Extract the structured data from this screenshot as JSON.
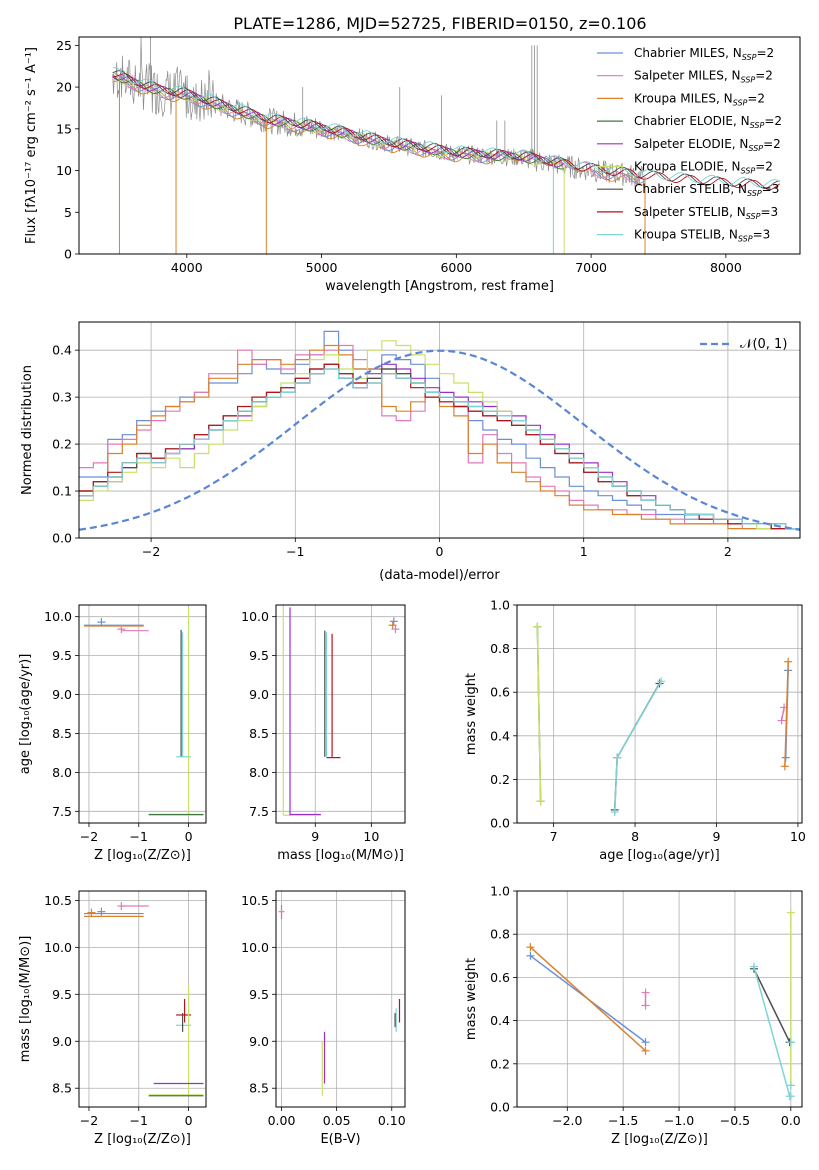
{
  "title": "PLATE=1286, MJD=52725, FIBERID=0150, z=0.106",
  "colors": {
    "chabrier_miles": "#6a8fd6",
    "salpeter_miles": "#e07ab9",
    "kroupa_miles": "#d9822b",
    "chabrier_elodie": "#3f7a3f",
    "salpeter_elodie": "#9b30c9",
    "kroupa_elodie": "#c8e06a",
    "chabrier_stelib": "#4d4d4d",
    "salpeter_stelib": "#b3131b",
    "kroupa_stelib": "#7fd3d6",
    "data_gray": "#8c8c8c",
    "gaussian": "#5b86d6"
  },
  "legend_models": [
    {
      "id": "chabrier_miles",
      "label": "Chabrier MILES, N",
      "sub": "SSP",
      "suffix": "=2"
    },
    {
      "id": "salpeter_miles",
      "label": "Salpeter MILES, N",
      "sub": "SSP",
      "suffix": "=2"
    },
    {
      "id": "kroupa_miles",
      "label": "Kroupa MILES, N",
      "sub": "SSP",
      "suffix": "=2"
    },
    {
      "id": "chabrier_elodie",
      "label": "Chabrier ELODIE, N",
      "sub": "SSP",
      "suffix": "=2"
    },
    {
      "id": "salpeter_elodie",
      "label": "Salpeter ELODIE, N",
      "sub": "SSP",
      "suffix": "=2"
    },
    {
      "id": "kroupa_elodie",
      "label": "Kroupa ELODIE, N",
      "sub": "SSP",
      "suffix": "=2"
    },
    {
      "id": "chabrier_stelib",
      "label": "Chabrier STELIB, N",
      "sub": "SSP",
      "suffix": "=3"
    },
    {
      "id": "salpeter_stelib",
      "label": "Salpeter STELIB, N",
      "sub": "SSP",
      "suffix": "=3"
    },
    {
      "id": "kroupa_stelib",
      "label": "Kroupa STELIB, N",
      "sub": "SSP",
      "suffix": "=3"
    }
  ],
  "chart_data": [
    {
      "id": "spectrum",
      "type": "line",
      "xlabel": "wavelength [Angstrom, rest frame]",
      "ylabel": "Flux [fλ10⁻¹⁷ erg cm⁻² s⁻¹ A⁻¹]",
      "xlim": [
        3200,
        8550
      ],
      "ylim": [
        0,
        26
      ],
      "xticks": [
        4000,
        5000,
        6000,
        7000,
        8000
      ],
      "yticks": [
        0,
        5,
        10,
        15,
        20,
        25
      ],
      "grid": false,
      "legend": "top-right",
      "model_continuum": [
        [
          3450,
          21.5
        ],
        [
          3600,
          20.5
        ],
        [
          3800,
          19.5
        ],
        [
          4000,
          19.0
        ],
        [
          4300,
          17.5
        ],
        [
          4600,
          16.0
        ],
        [
          5000,
          15.0
        ],
        [
          5500,
          13.2
        ],
        [
          6000,
          12.0
        ],
        [
          6500,
          11.5
        ],
        [
          7000,
          10.0
        ],
        [
          7500,
          9.0
        ],
        [
          8000,
          8.3
        ],
        [
          8500,
          7.8
        ]
      ]
    },
    {
      "id": "residuals",
      "type": "line",
      "xlabel": "(data-model)/error",
      "ylabel": "Normed distribution",
      "xlim": [
        -2.5,
        2.5
      ],
      "ylim": [
        0,
        0.46
      ],
      "xticks": [
        -2,
        -1,
        0,
        1,
        2
      ],
      "yticks": [
        0.0,
        0.1,
        0.2,
        0.3,
        0.4
      ],
      "grid": true,
      "legend": "top-right",
      "gaussian_label": "𝒩(0, 1)",
      "bins": {
        "start": -2.5,
        "width": 0.1,
        "count": 50
      },
      "series": [
        {
          "id": "chabrier_miles",
          "values": [
            0.13,
            0.13,
            0.21,
            0.22,
            0.25,
            0.27,
            0.28,
            0.3,
            0.31,
            0.33,
            0.33,
            0.35,
            0.37,
            0.36,
            0.35,
            0.37,
            0.39,
            0.44,
            0.4,
            0.36,
            0.36,
            0.39,
            0.38,
            0.37,
            0.34,
            0.3,
            0.29,
            0.25,
            0.23,
            0.21,
            0.2,
            0.17,
            0.15,
            0.13,
            0.11,
            0.1,
            0.09,
            0.08,
            0.07,
            0.06,
            0.05,
            0.05,
            0.04,
            0.04,
            0.03,
            0.03,
            0.03,
            0.03,
            0.02,
            0.02
          ]
        },
        {
          "id": "salpeter_miles",
          "values": [
            0.15,
            0.16,
            0.2,
            0.21,
            0.23,
            0.25,
            0.27,
            0.29,
            0.31,
            0.35,
            0.35,
            0.4,
            0.37,
            0.38,
            0.36,
            0.39,
            0.39,
            0.4,
            0.41,
            0.38,
            0.36,
            0.26,
            0.25,
            0.27,
            0.3,
            0.29,
            0.28,
            0.16,
            0.22,
            0.18,
            0.16,
            0.13,
            0.11,
            0.1,
            0.08,
            0.07,
            0.06,
            0.06,
            0.05,
            0.05,
            0.04,
            0.04,
            0.03,
            0.03,
            0.03,
            0.03,
            0.02,
            0.02,
            0.02,
            0.02
          ]
        },
        {
          "id": "kroupa_miles",
          "values": [
            0.1,
            0.12,
            0.18,
            0.2,
            0.24,
            0.26,
            0.28,
            0.29,
            0.3,
            0.34,
            0.34,
            0.37,
            0.38,
            0.38,
            0.37,
            0.38,
            0.4,
            0.41,
            0.39,
            0.36,
            0.36,
            0.28,
            0.27,
            0.29,
            0.31,
            0.28,
            0.26,
            0.18,
            0.2,
            0.16,
            0.14,
            0.12,
            0.1,
            0.09,
            0.07,
            0.06,
            0.06,
            0.05,
            0.05,
            0.04,
            0.04,
            0.03,
            0.03,
            0.03,
            0.03,
            0.02,
            0.02,
            0.02,
            0.02,
            0.02
          ]
        },
        {
          "id": "chabrier_elodie",
          "values": [
            0.09,
            0.11,
            0.13,
            0.16,
            0.17,
            0.16,
            0.18,
            0.19,
            0.21,
            0.23,
            0.25,
            0.27,
            0.29,
            0.3,
            0.31,
            0.33,
            0.35,
            0.36,
            0.34,
            0.32,
            0.34,
            0.36,
            0.35,
            0.33,
            0.31,
            0.3,
            0.29,
            0.28,
            0.27,
            0.26,
            0.25,
            0.23,
            0.21,
            0.19,
            0.17,
            0.15,
            0.13,
            0.11,
            0.1,
            0.08,
            0.07,
            0.06,
            0.05,
            0.05,
            0.04,
            0.04,
            0.03,
            0.03,
            0.03,
            0.02
          ]
        },
        {
          "id": "salpeter_elodie",
          "values": [
            0.09,
            0.11,
            0.12,
            0.15,
            0.17,
            0.16,
            0.18,
            0.19,
            0.21,
            0.23,
            0.25,
            0.26,
            0.28,
            0.3,
            0.31,
            0.33,
            0.35,
            0.37,
            0.34,
            0.32,
            0.35,
            0.37,
            0.36,
            0.34,
            0.32,
            0.31,
            0.3,
            0.29,
            0.28,
            0.27,
            0.26,
            0.24,
            0.22,
            0.2,
            0.18,
            0.16,
            0.14,
            0.12,
            0.1,
            0.09,
            0.07,
            0.06,
            0.05,
            0.05,
            0.04,
            0.04,
            0.03,
            0.03,
            0.03,
            0.02
          ]
        },
        {
          "id": "kroupa_elodie",
          "values": [
            0.08,
            0.1,
            0.12,
            0.14,
            0.16,
            0.15,
            0.17,
            0.15,
            0.18,
            0.2,
            0.23,
            0.25,
            0.28,
            0.31,
            0.33,
            0.35,
            0.38,
            0.39,
            0.36,
            0.34,
            0.4,
            0.42,
            0.41,
            0.39,
            0.37,
            0.35,
            0.33,
            0.31,
            0.29,
            0.27,
            0.25,
            0.23,
            0.21,
            0.19,
            0.17,
            0.15,
            0.13,
            0.11,
            0.09,
            0.08,
            0.07,
            0.06,
            0.05,
            0.04,
            0.04,
            0.03,
            0.03,
            0.02,
            0.02,
            0.02
          ]
        },
        {
          "id": "chabrier_stelib",
          "values": [
            0.1,
            0.12,
            0.13,
            0.15,
            0.18,
            0.17,
            0.19,
            0.2,
            0.22,
            0.24,
            0.26,
            0.27,
            0.29,
            0.31,
            0.32,
            0.34,
            0.36,
            0.37,
            0.35,
            0.33,
            0.34,
            0.36,
            0.35,
            0.33,
            0.31,
            0.3,
            0.28,
            0.27,
            0.26,
            0.25,
            0.24,
            0.22,
            0.2,
            0.18,
            0.16,
            0.14,
            0.12,
            0.11,
            0.09,
            0.08,
            0.07,
            0.06,
            0.05,
            0.04,
            0.04,
            0.03,
            0.03,
            0.03,
            0.02,
            0.02
          ]
        },
        {
          "id": "salpeter_stelib",
          "values": [
            0.1,
            0.12,
            0.14,
            0.16,
            0.18,
            0.17,
            0.19,
            0.2,
            0.22,
            0.24,
            0.26,
            0.28,
            0.3,
            0.31,
            0.32,
            0.34,
            0.36,
            0.37,
            0.35,
            0.33,
            0.33,
            0.35,
            0.34,
            0.32,
            0.3,
            0.29,
            0.28,
            0.27,
            0.26,
            0.25,
            0.24,
            0.22,
            0.2,
            0.18,
            0.16,
            0.14,
            0.12,
            0.11,
            0.09,
            0.08,
            0.07,
            0.06,
            0.05,
            0.04,
            0.04,
            0.03,
            0.03,
            0.03,
            0.02,
            0.02
          ]
        },
        {
          "id": "kroupa_stelib",
          "values": [
            0.09,
            0.11,
            0.13,
            0.16,
            0.17,
            0.16,
            0.18,
            0.2,
            0.21,
            0.23,
            0.25,
            0.27,
            0.29,
            0.3,
            0.31,
            0.33,
            0.35,
            0.36,
            0.34,
            0.32,
            0.33,
            0.35,
            0.34,
            0.33,
            0.31,
            0.3,
            0.29,
            0.28,
            0.27,
            0.26,
            0.25,
            0.23,
            0.21,
            0.19,
            0.17,
            0.15,
            0.13,
            0.11,
            0.1,
            0.08,
            0.07,
            0.06,
            0.05,
            0.05,
            0.04,
            0.04,
            0.03,
            0.03,
            0.03,
            0.02
          ]
        }
      ]
    },
    {
      "id": "age_vs_Z",
      "type": "scatter",
      "xlabel": "Z [log₁₀(Z/Z⊙)]",
      "ylabel": "age  [log₁₀(age/yr)]",
      "xlim": [
        -2.2,
        0.35
      ],
      "ylim": [
        7.35,
        10.15
      ],
      "xticks": [
        -2,
        -1,
        0
      ],
      "yticks": [
        7.5,
        8.0,
        8.5,
        9.0,
        9.5,
        10.0
      ],
      "grid": true
    },
    {
      "id": "age_vs_mass",
      "type": "scatter",
      "xlabel": "mass [log₁₀(M/M⊙)]",
      "ylabel": "",
      "xlim": [
        8.3,
        10.6
      ],
      "ylim": [
        7.35,
        10.15
      ],
      "xticks": [
        9,
        10
      ],
      "yticks": [
        7.5,
        8.0,
        8.5,
        9.0,
        9.5,
        10.0
      ],
      "grid": true
    },
    {
      "id": "weight_vs_age",
      "type": "line",
      "xlabel": "age  [log₁₀(age/yr)]",
      "ylabel": "mass weight",
      "xlim": [
        6.55,
        10.05
      ],
      "ylim": [
        0,
        1.0
      ],
      "xticks": [
        7,
        8,
        9,
        10
      ],
      "yticks": [
        0.0,
        0.2,
        0.4,
        0.6,
        0.8,
        1.0
      ],
      "grid": true,
      "series": [
        {
          "id": "chabrier_miles",
          "points": [
            [
              9.85,
              0.3
            ],
            [
              9.88,
              0.7
            ]
          ]
        },
        {
          "id": "salpeter_miles",
          "points": [
            [
              9.8,
              0.47
            ],
            [
              9.83,
              0.53
            ]
          ]
        },
        {
          "id": "kroupa_miles",
          "points": [
            [
              9.84,
              0.26
            ],
            [
              9.88,
              0.74
            ]
          ]
        },
        {
          "id": "chabrier_elodie",
          "points": [
            [
              6.8,
              0.9
            ],
            [
              6.84,
              0.1
            ]
          ]
        },
        {
          "id": "kroupa_elodie",
          "points": [
            [
              6.8,
              0.9
            ],
            [
              6.84,
              0.1
            ]
          ]
        },
        {
          "id": "chabrier_stelib",
          "points": [
            [
              7.75,
              0.06
            ],
            [
              7.78,
              0.3
            ],
            [
              8.3,
              0.64
            ]
          ]
        },
        {
          "id": "kroupa_stelib",
          "points": [
            [
              7.75,
              0.05
            ],
            [
              7.78,
              0.3
            ],
            [
              8.32,
              0.65
            ]
          ]
        }
      ]
    },
    {
      "id": "mass_vs_Z",
      "type": "scatter",
      "xlabel": "Z [log₁₀(Z/Z⊙)]",
      "ylabel": "mass [log₁₀(M/M⊙)]",
      "xlim": [
        -2.2,
        0.35
      ],
      "ylim": [
        8.3,
        10.6
      ],
      "xticks": [
        -2,
        -1,
        0
      ],
      "yticks": [
        8.5,
        9.0,
        9.5,
        10.0,
        10.5
      ],
      "grid": true
    },
    {
      "id": "mass_vs_ebv",
      "type": "scatter",
      "xlabel": "E(B-V)",
      "ylabel": "",
      "xlim": [
        -0.005,
        0.112
      ],
      "ylim": [
        8.3,
        10.6
      ],
      "xticks": [
        0.0,
        0.05,
        0.1
      ],
      "yticks": [
        8.5,
        9.0,
        9.5,
        10.0,
        10.5
      ],
      "grid": true
    },
    {
      "id": "weight_vs_Z",
      "type": "line",
      "xlabel": "Z [log₁₀(Z/Z⊙)]",
      "ylabel": "mass weight",
      "xlim": [
        -2.45,
        0.1
      ],
      "ylim": [
        0,
        1.0
      ],
      "xticks": [
        -2.0,
        -1.5,
        -1.0,
        -0.5,
        0.0
      ],
      "yticks": [
        0.0,
        0.2,
        0.4,
        0.6,
        0.8,
        1.0
      ],
      "grid": true,
      "series": [
        {
          "id": "chabrier_miles",
          "points": [
            [
              -2.33,
              0.7
            ],
            [
              -1.3,
              0.3
            ]
          ]
        },
        {
          "id": "kroupa_miles",
          "points": [
            [
              -2.33,
              0.74
            ],
            [
              -1.3,
              0.26
            ]
          ]
        },
        {
          "id": "salpeter_miles",
          "points": [
            [
              -1.3,
              0.47
            ],
            [
              -1.3,
              0.53
            ]
          ]
        },
        {
          "id": "chabrier_stelib",
          "points": [
            [
              -0.33,
              0.64
            ],
            [
              -0.01,
              0.3
            ]
          ]
        },
        {
          "id": "kroupa_stelib",
          "points": [
            [
              -0.33,
              0.65
            ],
            [
              -0.01,
              0.05
            ]
          ]
        },
        {
          "id": "kroupa_elodie",
          "points": [
            [
              0.0,
              0.9
            ],
            [
              0.0,
              0.1
            ]
          ]
        }
      ]
    }
  ]
}
